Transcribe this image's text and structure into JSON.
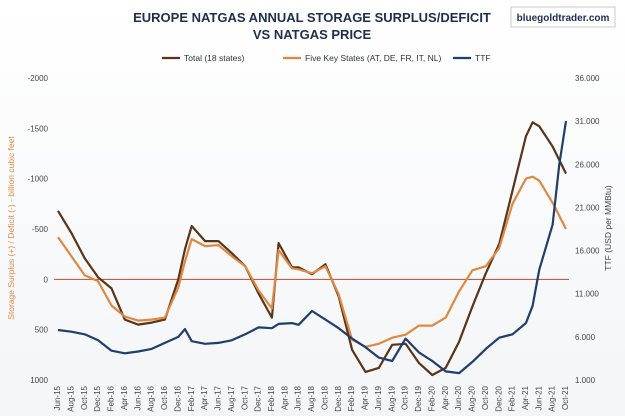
{
  "chart_data": {
    "type": "line",
    "title": [
      "EUROPE NATGAS ANNUAL STORAGE SURPLUS/DEFICIT",
      "VS NATGAS PRICE"
    ],
    "watermark": "bluegoldtrader.com",
    "ylabel_left": "Storage Surplus (+) / Deficit (-) - billion cubic feet",
    "ylabel_right": "TTF (USD per MMBtu)",
    "left_axis": {
      "min": -2000,
      "max": 1000,
      "reversed": true,
      "ticks": [
        "-2000",
        "-1500",
        "-1000",
        "-500",
        "0",
        "500",
        "1000"
      ]
    },
    "right_axis": {
      "min": 1,
      "max": 36,
      "ticks": [
        "36.000",
        "31.000",
        "26.000",
        "21.000",
        "16.000",
        "11.000",
        "6.000",
        "1.000"
      ]
    },
    "x_ticks": [
      "Jun-15",
      "Aug-15",
      "Oct-15",
      "Dec-15",
      "Feb-16",
      "Apr-16",
      "Jun-16",
      "Aug-16",
      "Oct-16",
      "Dec-16",
      "Feb-17",
      "Apr-17",
      "Jun-17",
      "Aug-17",
      "Oct-17",
      "Dec-17",
      "Feb-18",
      "Apr-18",
      "Jun-18",
      "Aug-18",
      "Oct-18",
      "Dec-18",
      "Feb-19",
      "Apr-19",
      "Jun-19",
      "Aug-19",
      "Oct-19",
      "Dec-19",
      "Feb-20",
      "Apr-20",
      "Jun-20",
      "Aug-20",
      "Oct-20",
      "Dec-20",
      "Feb-21",
      "Apr-21",
      "Jun-21",
      "Aug-21",
      "Oct-21"
    ],
    "colors": {
      "total": "#5a3418",
      "key_states": "#e0883e",
      "ttf": "#1e3f6e",
      "zero_line": "#b04a3a",
      "left_label": "#e0883e",
      "right_label": "#444444"
    },
    "series": [
      {
        "name": "Total (18 states)",
        "axis": "left",
        "x": [
          "Jun-15",
          "Aug-15",
          "Oct-15",
          "Dec-15",
          "Feb-16",
          "Apr-16",
          "Jun-16",
          "Aug-16",
          "Oct-16",
          "Dec-16",
          "Jan-17",
          "Feb-17",
          "Apr-17",
          "Jun-17",
          "Aug-17",
          "Oct-17",
          "Dec-17",
          "Feb-18",
          "Mar-18",
          "May-18",
          "Jun-18",
          "Aug-18",
          "Oct-18",
          "Dec-18",
          "Feb-19",
          "Apr-19",
          "Jun-19",
          "Aug-19",
          "Oct-19",
          "Dec-19",
          "Feb-20",
          "Apr-20",
          "Jun-20",
          "Aug-20",
          "Oct-20",
          "Dec-20",
          "Feb-21",
          "Apr-21",
          "May-21",
          "Jun-21",
          "Aug-21",
          "Oct-21"
        ],
        "values": [
          -680,
          -460,
          -210,
          -20,
          90,
          400,
          450,
          430,
          400,
          0,
          -300,
          -530,
          -380,
          -380,
          -260,
          -130,
          140,
          380,
          -360,
          -120,
          -120,
          -50,
          -150,
          170,
          700,
          920,
          880,
          650,
          640,
          830,
          950,
          880,
          620,
          270,
          -60,
          -350,
          -880,
          -1420,
          -1560,
          -1520,
          -1320,
          -1050
        ]
      },
      {
        "name": "Five Key States (AT, DE, FR, IT, NL)",
        "axis": "left",
        "x": [
          "Jun-15",
          "Aug-15",
          "Oct-15",
          "Dec-15",
          "Feb-16",
          "Apr-16",
          "Jun-16",
          "Aug-16",
          "Oct-16",
          "Dec-16",
          "Jan-17",
          "Feb-17",
          "Apr-17",
          "Jun-17",
          "Aug-17",
          "Oct-17",
          "Dec-17",
          "Feb-18",
          "Mar-18",
          "May-18",
          "Jun-18",
          "Aug-18",
          "Oct-18",
          "Dec-18",
          "Feb-19",
          "Apr-19",
          "Jun-19",
          "Aug-19",
          "Oct-19",
          "Dec-19",
          "Feb-20",
          "Apr-20",
          "Jun-20",
          "Aug-20",
          "Oct-20",
          "Dec-20",
          "Feb-21",
          "Apr-21",
          "May-21",
          "Jun-21",
          "Aug-21",
          "Oct-21"
        ],
        "values": [
          -420,
          -230,
          -40,
          20,
          260,
          370,
          410,
          400,
          380,
          80,
          -180,
          -400,
          -330,
          -340,
          -230,
          -130,
          110,
          290,
          -290,
          -110,
          -100,
          -60,
          -130,
          150,
          600,
          670,
          640,
          580,
          550,
          460,
          460,
          380,
          120,
          -90,
          -130,
          -310,
          -750,
          -1000,
          -1020,
          -980,
          -760,
          -500
        ]
      },
      {
        "name": "TTF",
        "axis": "right",
        "x": [
          "Jun-15",
          "Aug-15",
          "Oct-15",
          "Dec-15",
          "Feb-16",
          "Apr-16",
          "Jun-16",
          "Aug-16",
          "Oct-16",
          "Dec-16",
          "Jan-17",
          "Feb-17",
          "Apr-17",
          "Jun-17",
          "Aug-17",
          "Oct-17",
          "Dec-17",
          "Feb-18",
          "Mar-18",
          "May-18",
          "Jun-18",
          "Aug-18",
          "Oct-18",
          "Dec-18",
          "Feb-19",
          "Apr-19",
          "Jun-19",
          "Aug-19",
          "Oct-19",
          "Dec-19",
          "Feb-20",
          "Apr-20",
          "Jun-20",
          "Aug-20",
          "Oct-20",
          "Dec-20",
          "Feb-21",
          "Apr-21",
          "May-21",
          "Jun-21",
          "Aug-21",
          "Sep-21",
          "Oct-21"
        ],
        "values": [
          6.8,
          6.6,
          6.3,
          5.6,
          4.4,
          4.1,
          4.3,
          4.6,
          5.3,
          6.0,
          6.9,
          5.5,
          5.2,
          5.3,
          5.6,
          6.3,
          7.1,
          7.0,
          7.5,
          7.6,
          7.4,
          9.0,
          8.0,
          7.0,
          5.8,
          4.8,
          3.6,
          3.2,
          5.8,
          4.2,
          3.2,
          2.0,
          1.8,
          3.1,
          4.6,
          5.9,
          6.3,
          7.6,
          9.6,
          13.8,
          19.0,
          26.0,
          31.0
        ]
      }
    ]
  }
}
